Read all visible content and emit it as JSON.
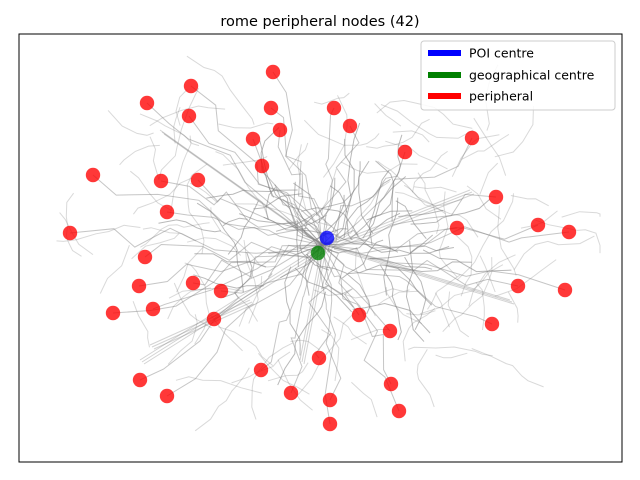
{
  "chart_data": {
    "type": "scatter",
    "title": "rome peripheral nodes (42)",
    "xlabel": "",
    "ylabel": "",
    "grid": false,
    "axes_ticks": false,
    "legend_position": "upper right",
    "legend": [
      {
        "label": "POI centre",
        "color": "#0000ff"
      },
      {
        "label": "geographical centre",
        "color": "#008000"
      },
      {
        "label": "peripheral",
        "color": "#ff0000"
      }
    ],
    "series": [
      {
        "name": "POI centre",
        "color": "#0000ff",
        "points": [
          [
            327,
            238
          ]
        ]
      },
      {
        "name": "geographical centre",
        "color": "#008000",
        "points": [
          [
            318,
            253
          ]
        ]
      },
      {
        "name": "peripheral",
        "color": "#ff0000",
        "points": [
          [
            273,
            72
          ],
          [
            191,
            86
          ],
          [
            147,
            103
          ],
          [
            271,
            108
          ],
          [
            334,
            108
          ],
          [
            189,
            116
          ],
          [
            280,
            130
          ],
          [
            350,
            126
          ],
          [
            253,
            139
          ],
          [
            472,
            138
          ],
          [
            405,
            152
          ],
          [
            262,
            166
          ],
          [
            93,
            175
          ],
          [
            161,
            181
          ],
          [
            198,
            180
          ],
          [
            496,
            197
          ],
          [
            167,
            212
          ],
          [
            538,
            225
          ],
          [
            457,
            228
          ],
          [
            569,
            232
          ],
          [
            70,
            233
          ],
          [
            145,
            257
          ],
          [
            193,
            283
          ],
          [
            139,
            286
          ],
          [
            518,
            286
          ],
          [
            565,
            290
          ],
          [
            221,
            291
          ],
          [
            153,
            309
          ],
          [
            113,
            313
          ],
          [
            359,
            315
          ],
          [
            214,
            319
          ],
          [
            492,
            324
          ],
          [
            390,
            331
          ],
          [
            319,
            358
          ],
          [
            261,
            370
          ],
          [
            140,
            380
          ],
          [
            391,
            384
          ],
          [
            291,
            393
          ],
          [
            167,
            396
          ],
          [
            330,
            400
          ],
          [
            399,
            411
          ],
          [
            330,
            424
          ]
        ]
      }
    ],
    "background_network": "grey street network of Rome"
  },
  "colors": {
    "network": "#808080",
    "frame": "#000000",
    "legend_border": "#cccccc"
  }
}
